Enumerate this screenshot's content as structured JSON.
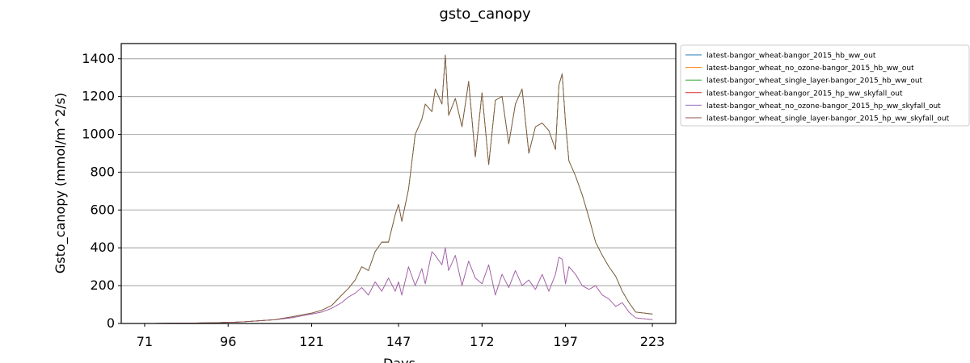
{
  "chart_data": {
    "type": "line",
    "title": "gsto_canopy",
    "xlabel": "Days",
    "ylabel": "Gsto_canopy (mmol/m^2/s)",
    "xlim": [
      64,
      230
    ],
    "ylim": [
      0,
      1480
    ],
    "xticks": [
      71,
      96,
      121,
      147,
      172,
      197,
      223
    ],
    "yticks": [
      0,
      200,
      400,
      600,
      800,
      1000,
      1200,
      1400
    ],
    "grid": "horizontal",
    "legend_position": "outside-top-right",
    "series": [
      {
        "name": "latest-bangor_wheat-bangor_2015_hb_ww_out",
        "color": "#1f77b4",
        "group": "hb",
        "x": [
          71,
          90,
          100,
          110,
          115,
          118,
          121,
          124,
          127,
          130,
          132,
          134,
          136,
          138,
          140,
          142,
          144,
          146,
          147,
          148,
          150,
          152,
          154,
          155,
          157,
          158,
          160,
          161,
          162,
          164,
          166,
          168,
          170,
          172,
          174,
          176,
          178,
          180,
          182,
          184,
          186,
          188,
          190,
          192,
          194,
          195,
          196,
          197,
          198,
          200,
          202,
          204,
          206,
          208,
          210,
          212,
          214,
          216,
          218,
          223
        ],
        "y": [
          0,
          3,
          8,
          20,
          35,
          45,
          55,
          70,
          95,
          150,
          185,
          230,
          300,
          280,
          380,
          430,
          430,
          575,
          630,
          540,
          710,
          1000,
          1080,
          1160,
          1120,
          1240,
          1160,
          1420,
          1100,
          1190,
          1040,
          1280,
          880,
          1220,
          840,
          1180,
          1200,
          950,
          1160,
          1240,
          900,
          1040,
          1060,
          1020,
          920,
          1260,
          1320,
          1060,
          860,
          780,
          680,
          560,
          430,
          360,
          300,
          250,
          170,
          110,
          60,
          50
        ]
      },
      {
        "name": "latest-bangor_wheat_no_ozone-bangor_2015_hb_ww_out",
        "color": "#ff7f0e",
        "group": "hb",
        "x": [
          71,
          90,
          100,
          110,
          115,
          118,
          121,
          124,
          127,
          130,
          132,
          134,
          136,
          138,
          140,
          142,
          144,
          146,
          147,
          148,
          150,
          152,
          154,
          155,
          157,
          158,
          160,
          161,
          162,
          164,
          166,
          168,
          170,
          172,
          174,
          176,
          178,
          180,
          182,
          184,
          186,
          188,
          190,
          192,
          194,
          195,
          196,
          197,
          198,
          200,
          202,
          204,
          206,
          208,
          210,
          212,
          214,
          216,
          218,
          223
        ],
        "y": [
          0,
          3,
          8,
          20,
          35,
          45,
          55,
          70,
          95,
          150,
          185,
          230,
          300,
          280,
          380,
          430,
          430,
          575,
          630,
          540,
          710,
          1000,
          1080,
          1160,
          1120,
          1240,
          1160,
          1420,
          1100,
          1190,
          1040,
          1280,
          880,
          1220,
          840,
          1180,
          1200,
          950,
          1160,
          1240,
          900,
          1040,
          1060,
          1020,
          920,
          1260,
          1320,
          1060,
          860,
          780,
          680,
          560,
          430,
          360,
          300,
          250,
          170,
          110,
          60,
          50
        ]
      },
      {
        "name": "latest-bangor_wheat_single_layer-bangor_2015_hb_ww_out",
        "color": "#2ca02c",
        "group": "hb",
        "x": [
          71,
          90,
          100,
          110,
          115,
          118,
          121,
          124,
          127,
          130,
          132,
          134,
          136,
          138,
          140,
          142,
          144,
          146,
          147,
          148,
          150,
          152,
          154,
          155,
          157,
          158,
          160,
          161,
          162,
          164,
          166,
          168,
          170,
          172,
          174,
          176,
          178,
          180,
          182,
          184,
          186,
          188,
          190,
          192,
          194,
          195,
          196,
          197,
          198,
          200,
          202,
          204,
          206,
          208,
          210,
          212,
          214,
          216,
          218,
          223
        ],
        "y": [
          0,
          3,
          8,
          20,
          35,
          45,
          55,
          70,
          95,
          150,
          185,
          230,
          300,
          280,
          380,
          430,
          430,
          575,
          630,
          540,
          710,
          1000,
          1080,
          1160,
          1120,
          1240,
          1160,
          1420,
          1100,
          1190,
          1040,
          1280,
          880,
          1220,
          840,
          1180,
          1200,
          950,
          1160,
          1240,
          900,
          1040,
          1060,
          1020,
          920,
          1260,
          1320,
          1060,
          860,
          780,
          680,
          560,
          430,
          360,
          300,
          250,
          170,
          110,
          60,
          50
        ]
      },
      {
        "name": "latest-bangor_wheat-bangor_2015_hp_ww_skyfall_out",
        "color": "#d62728",
        "group": "hp",
        "x": [
          71,
          90,
          100,
          110,
          115,
          118,
          121,
          124,
          127,
          130,
          132,
          134,
          136,
          138,
          140,
          142,
          144,
          146,
          147,
          148,
          150,
          152,
          154,
          155,
          157,
          158,
          160,
          161,
          162,
          164,
          166,
          168,
          170,
          172,
          174,
          176,
          178,
          180,
          182,
          184,
          186,
          188,
          190,
          192,
          194,
          195,
          196,
          197,
          198,
          200,
          202,
          204,
          206,
          208,
          210,
          212,
          214,
          216,
          218,
          223
        ],
        "y": [
          0,
          3,
          8,
          20,
          30,
          40,
          50,
          60,
          80,
          110,
          140,
          160,
          190,
          150,
          220,
          170,
          240,
          170,
          220,
          150,
          300,
          200,
          290,
          210,
          380,
          360,
          310,
          400,
          280,
          360,
          200,
          330,
          240,
          210,
          310,
          150,
          260,
          190,
          280,
          200,
          230,
          180,
          260,
          170,
          260,
          350,
          340,
          210,
          300,
          260,
          200,
          180,
          200,
          150,
          130,
          90,
          110,
          60,
          30,
          20
        ]
      },
      {
        "name": "latest-bangor_wheat_no_ozone-bangor_2015_hp_ww_skyfall_out",
        "color": "#9467bd",
        "group": "hp",
        "x": [
          71,
          90,
          100,
          110,
          115,
          118,
          121,
          124,
          127,
          130,
          132,
          134,
          136,
          138,
          140,
          142,
          144,
          146,
          147,
          148,
          150,
          152,
          154,
          155,
          157,
          158,
          160,
          161,
          162,
          164,
          166,
          168,
          170,
          172,
          174,
          176,
          178,
          180,
          182,
          184,
          186,
          188,
          190,
          192,
          194,
          195,
          196,
          197,
          198,
          200,
          202,
          204,
          206,
          208,
          210,
          212,
          214,
          216,
          218,
          223
        ],
        "y": [
          0,
          3,
          8,
          20,
          30,
          40,
          50,
          60,
          80,
          110,
          140,
          160,
          190,
          150,
          220,
          170,
          240,
          170,
          220,
          150,
          300,
          200,
          290,
          210,
          380,
          360,
          310,
          400,
          280,
          360,
          200,
          330,
          240,
          210,
          310,
          150,
          260,
          190,
          280,
          200,
          230,
          180,
          260,
          170,
          260,
          350,
          340,
          210,
          300,
          260,
          200,
          180,
          200,
          150,
          130,
          90,
          110,
          60,
          30,
          20
        ]
      },
      {
        "name": "latest-bangor_wheat_single_layer-bangor_2015_hp_ww_skyfall_out",
        "color": "#8c564b",
        "group": "hb",
        "x": [
          71,
          90,
          100,
          110,
          115,
          118,
          121,
          124,
          127,
          130,
          132,
          134,
          136,
          138,
          140,
          142,
          144,
          146,
          147,
          148,
          150,
          152,
          154,
          155,
          157,
          158,
          160,
          161,
          162,
          164,
          166,
          168,
          170,
          172,
          174,
          176,
          178,
          180,
          182,
          184,
          186,
          188,
          190,
          192,
          194,
          195,
          196,
          197,
          198,
          200,
          202,
          204,
          206,
          208,
          210,
          212,
          214,
          216,
          218,
          223
        ],
        "y": [
          0,
          3,
          8,
          20,
          35,
          45,
          55,
          70,
          95,
          150,
          185,
          230,
          300,
          280,
          380,
          430,
          430,
          575,
          630,
          540,
          710,
          1000,
          1080,
          1160,
          1120,
          1240,
          1160,
          1420,
          1100,
          1190,
          1040,
          1280,
          880,
          1220,
          840,
          1180,
          1200,
          950,
          1160,
          1240,
          900,
          1040,
          1060,
          1020,
          920,
          1260,
          1320,
          1060,
          860,
          780,
          680,
          560,
          430,
          360,
          300,
          250,
          170,
          110,
          60,
          50
        ]
      }
    ]
  }
}
